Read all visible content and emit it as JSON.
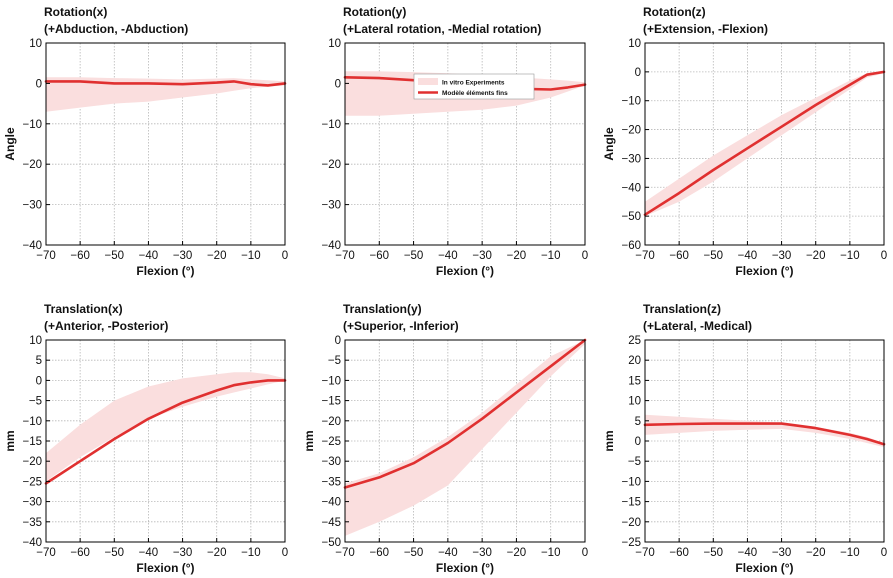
{
  "colors": {
    "model_line": "#e03030",
    "band_fill": "#fadede",
    "grid": "#b8b8b8",
    "axis": "#000000"
  },
  "legend": {
    "band_label": "In vitro Experiments",
    "line_label": "Modèle éléments fins",
    "placement": "inside top of Rotation(y) panel"
  },
  "chart_data": [
    {
      "type": "line",
      "title": "Rotation(x)",
      "subtitle": "(+Abduction, -Abduction)",
      "xlabel": "Flexion (°)",
      "ylabel": "Angle",
      "xlim": [
        -70,
        0
      ],
      "ylim": [
        -40,
        10
      ],
      "xticks": [
        -70,
        -60,
        -50,
        -40,
        -30,
        -20,
        -10,
        0
      ],
      "yticks": [
        -40,
        -30,
        -20,
        -10,
        0,
        10
      ],
      "grid": true,
      "x": [
        -70,
        -60,
        -50,
        -40,
        -30,
        -20,
        -15,
        -10,
        -5,
        0
      ],
      "series": [
        {
          "name": "Modèle éléments fins",
          "values": [
            0.5,
            0.5,
            0,
            0,
            -0.2,
            0.2,
            0.5,
            -0.2,
            -0.5,
            0
          ]
        },
        {
          "name": "In vitro Experiments",
          "band": true,
          "upper": [
            1.5,
            1.5,
            1.3,
            1.2,
            1.0,
            1.2,
            1.3,
            1.0,
            0.8,
            0.5
          ],
          "lower": [
            -7,
            -6,
            -5,
            -4.5,
            -3.5,
            -2.5,
            -1.8,
            -1.2,
            -0.8,
            -0.5
          ]
        }
      ]
    },
    {
      "type": "line",
      "title": "Rotation(y)",
      "subtitle": "(+Lateral rotation, -Medial rotation)",
      "xlabel": "Flexion (°)",
      "ylabel": "",
      "xlim": [
        -70,
        0
      ],
      "ylim": [
        -40,
        10
      ],
      "xticks": [
        -70,
        -60,
        -50,
        -40,
        -30,
        -20,
        -10,
        0
      ],
      "yticks": [
        -40,
        -30,
        -20,
        -10,
        0,
        10
      ],
      "grid": true,
      "x": [
        -70,
        -60,
        -50,
        -40,
        -30,
        -20,
        -10,
        -5,
        0
      ],
      "series": [
        {
          "name": "Modèle éléments fins",
          "values": [
            1.5,
            1.3,
            0.8,
            0,
            -0.8,
            -1.3,
            -1.5,
            -1.0,
            -0.3
          ]
        },
        {
          "name": "In vitro Experiments",
          "band": true,
          "upper": [
            3,
            3,
            2.8,
            2.5,
            2,
            1.5,
            1,
            0.7,
            0.3
          ],
          "lower": [
            -8,
            -8,
            -7.5,
            -7,
            -6.5,
            -5.5,
            -3.5,
            -2,
            -0.5
          ]
        }
      ]
    },
    {
      "type": "line",
      "title": "Rotation(z)",
      "subtitle": "(+Extension, -Flexion)",
      "xlabel": "Flexion (°)",
      "ylabel": "Angle",
      "xlim": [
        -70,
        0
      ],
      "ylim": [
        -60,
        10
      ],
      "xticks": [
        -70,
        -60,
        -50,
        -40,
        -30,
        -20,
        -10,
        0
      ],
      "yticks": [
        -60,
        -50,
        -40,
        -30,
        -20,
        -10,
        0,
        10
      ],
      "grid": true,
      "x": [
        -70,
        -60,
        -50,
        -40,
        -30,
        -20,
        -10,
        -5,
        0
      ],
      "series": [
        {
          "name": "Modèle éléments fins",
          "values": [
            -49.5,
            -42,
            -34,
            -26.5,
            -19,
            -11.5,
            -4.5,
            -1,
            0
          ]
        },
        {
          "name": "In vitro Experiments",
          "band": true,
          "upper": [
            -45,
            -37,
            -29,
            -22,
            -15,
            -9,
            -3,
            -0.5,
            0.5
          ],
          "lower": [
            -50,
            -45,
            -38,
            -30,
            -22,
            -14,
            -6,
            -2,
            -0.5
          ]
        }
      ]
    },
    {
      "type": "line",
      "title": "Translation(x)",
      "subtitle": "(+Anterior, -Posterior)",
      "xlabel": "Flexion (°)",
      "ylabel": "mm",
      "xlim": [
        -70,
        0
      ],
      "ylim": [
        -40,
        10
      ],
      "xticks": [
        -70,
        -60,
        -50,
        -40,
        -30,
        -20,
        -10,
        0
      ],
      "yticks": [
        -40,
        -35,
        -30,
        -25,
        -20,
        -15,
        -10,
        -5,
        0,
        5,
        10
      ],
      "grid": true,
      "x": [
        -70,
        -60,
        -50,
        -40,
        -30,
        -20,
        -15,
        -10,
        -5,
        0
      ],
      "series": [
        {
          "name": "Modèle éléments fins",
          "values": [
            -25.5,
            -20,
            -14.5,
            -9.5,
            -5.5,
            -2.5,
            -1.2,
            -0.5,
            0,
            0
          ]
        },
        {
          "name": "In vitro Experiments",
          "band": true,
          "upper": [
            -18,
            -11,
            -5,
            -1.5,
            0.5,
            1.5,
            2,
            2,
            1.5,
            0.5
          ],
          "lower": [
            -25,
            -19,
            -14,
            -9.5,
            -6.5,
            -4,
            -3,
            -2,
            -1,
            0
          ]
        }
      ]
    },
    {
      "type": "line",
      "title": "Translation(y)",
      "subtitle": "(+Superior, -Inferior)",
      "xlabel": "Flexion (°)",
      "ylabel": "mm",
      "xlim": [
        -70,
        0
      ],
      "ylim": [
        -50,
        0
      ],
      "xticks": [
        -70,
        -60,
        -50,
        -40,
        -30,
        -20,
        -10,
        0
      ],
      "yticks": [
        -50,
        -45,
        -40,
        -35,
        -30,
        -25,
        -20,
        -15,
        -10,
        -5,
        0
      ],
      "grid": true,
      "x": [
        -70,
        -60,
        -50,
        -40,
        -30,
        -20,
        -10,
        0
      ],
      "series": [
        {
          "name": "Modèle éléments fins",
          "values": [
            -36.5,
            -34,
            -30.5,
            -25.5,
            -19.5,
            -13,
            -6.5,
            0
          ]
        },
        {
          "name": "In vitro Experiments",
          "band": true,
          "upper": [
            -35.5,
            -33,
            -29,
            -24,
            -18,
            -11,
            -4,
            0
          ],
          "lower": [
            -48.5,
            -45,
            -41,
            -36,
            -27,
            -18,
            -9,
            -1
          ]
        }
      ]
    },
    {
      "type": "line",
      "title": "Translation(z)",
      "subtitle": "(+Lateral, -Medical)",
      "xlabel": "Flexion (°)",
      "ylabel": "mm",
      "xlim": [
        -70,
        0
      ],
      "ylim": [
        -25,
        25
      ],
      "xticks": [
        -70,
        -60,
        -50,
        -40,
        -30,
        -20,
        -10,
        0
      ],
      "yticks": [
        -25,
        -20,
        -15,
        -10,
        -5,
        0,
        5,
        10,
        15,
        20,
        25
      ],
      "grid": true,
      "x": [
        -70,
        -60,
        -50,
        -40,
        -30,
        -20,
        -10,
        -5,
        0
      ],
      "series": [
        {
          "name": "Modèle éléments fins",
          "values": [
            4,
            4.2,
            4.3,
            4.3,
            4.3,
            3.2,
            1.5,
            0.5,
            -0.8
          ]
        },
        {
          "name": "In vitro Experiments",
          "band": true,
          "upper": [
            6.5,
            6,
            5.5,
            5,
            4.5,
            3.5,
            2,
            1,
            -0.5
          ],
          "lower": [
            1.5,
            2,
            2.5,
            2.8,
            3,
            2,
            0.5,
            -0.5,
            -1.5
          ]
        }
      ]
    }
  ]
}
